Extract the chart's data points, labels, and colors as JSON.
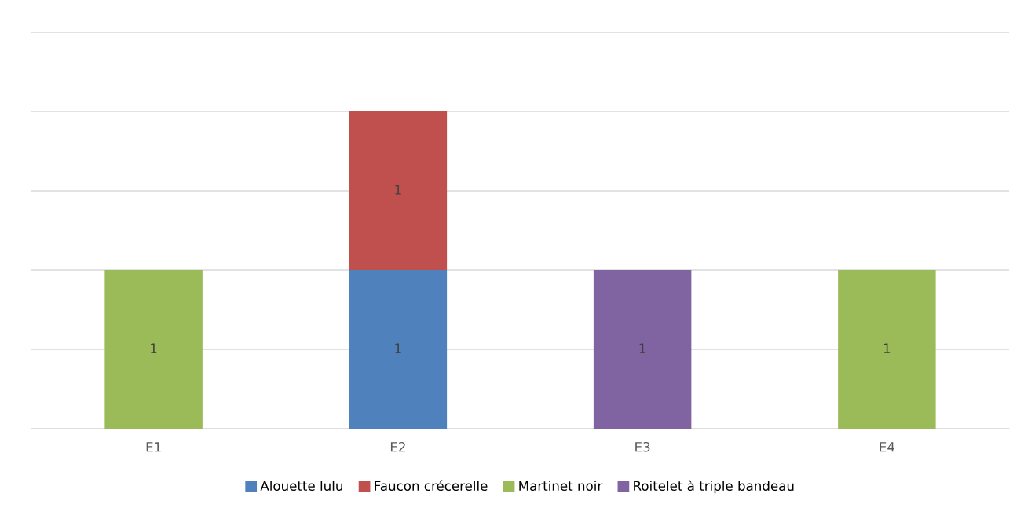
{
  "chart_data": {
    "type": "bar",
    "stacked": true,
    "categories": [
      "E1",
      "E2",
      "E3",
      "E4"
    ],
    "series": [
      {
        "name": "Alouette lulu",
        "color": "#4f81bd",
        "values": [
          null,
          1,
          null,
          null
        ]
      },
      {
        "name": "Faucon crécerelle",
        "color": "#c0504d",
        "values": [
          null,
          1,
          null,
          null
        ]
      },
      {
        "name": "Martinet noir",
        "color": "#9bbb59",
        "values": [
          1,
          null,
          null,
          1
        ]
      },
      {
        "name": "Roitelet à triple bandeau",
        "color": "#8064a2",
        "values": [
          null,
          null,
          1,
          null
        ]
      }
    ],
    "ylim": [
      0,
      2.5
    ],
    "yticks": [
      {
        "value": 0,
        "label": null
      },
      {
        "value": 0.5,
        "label": null
      },
      {
        "value": 1,
        "label": null
      },
      {
        "value": 1.5,
        "label": null
      },
      {
        "value": 2,
        "label": null
      },
      {
        "value": 2.5,
        "label": null
      }
    ],
    "tick_labels": "x",
    "grid": "y",
    "data_labels": true,
    "legend": "bottom"
  }
}
